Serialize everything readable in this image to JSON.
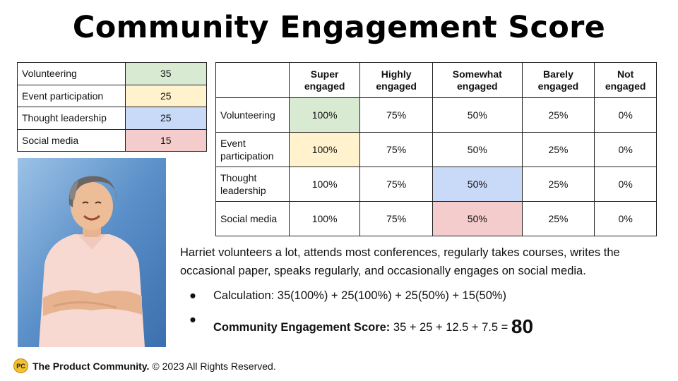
{
  "title": "Community Engagement Score",
  "weights": [
    {
      "category": "Volunteering",
      "weight": "35",
      "color": "#d9ead3"
    },
    {
      "category": "Event participation",
      "weight": "25",
      "color": "#fff2cc"
    },
    {
      "category": "Thought leadership",
      "weight": "25",
      "color": "#c9daf8"
    },
    {
      "category": "Social media",
      "weight": "15",
      "color": "#f4cccc"
    }
  ],
  "matrix": {
    "headers": [
      "Super engaged",
      "Highly engaged",
      "Somewhat engaged",
      "Barely engaged",
      "Not engaged"
    ],
    "rows": [
      {
        "label": "Volunteering",
        "cells": [
          "100%",
          "75%",
          "50%",
          "25%",
          "0%"
        ]
      },
      {
        "label": "Event participation",
        "cells": [
          "100%",
          "75%",
          "50%",
          "25%",
          "0%"
        ]
      },
      {
        "label": "Thought leadership",
        "cells": [
          "100%",
          "75%",
          "50%",
          "25%",
          "0%"
        ]
      },
      {
        "label": "Social media",
        "cells": [
          "100%",
          "75%",
          "50%",
          "25%",
          "0%"
        ]
      }
    ]
  },
  "description": "Harriet volunteers a lot, attends most conferences, regularly takes courses, writes the occasional paper, speaks regularly, and occasionally engages on social media.",
  "bullets": {
    "dot": "●",
    "calculation": "Calculation: 35(100%) + 25(100%) + 25(50%) + 15(50%)",
    "score_label": "Community Engagement Score:",
    "score_expression": "35 + 25 + 12.5 + 7.5 =",
    "score_value": "80"
  },
  "footer": {
    "logo_text": "PC",
    "brand": "The Product Community.",
    "copyright": "© 2023 All Rights Reserved."
  }
}
